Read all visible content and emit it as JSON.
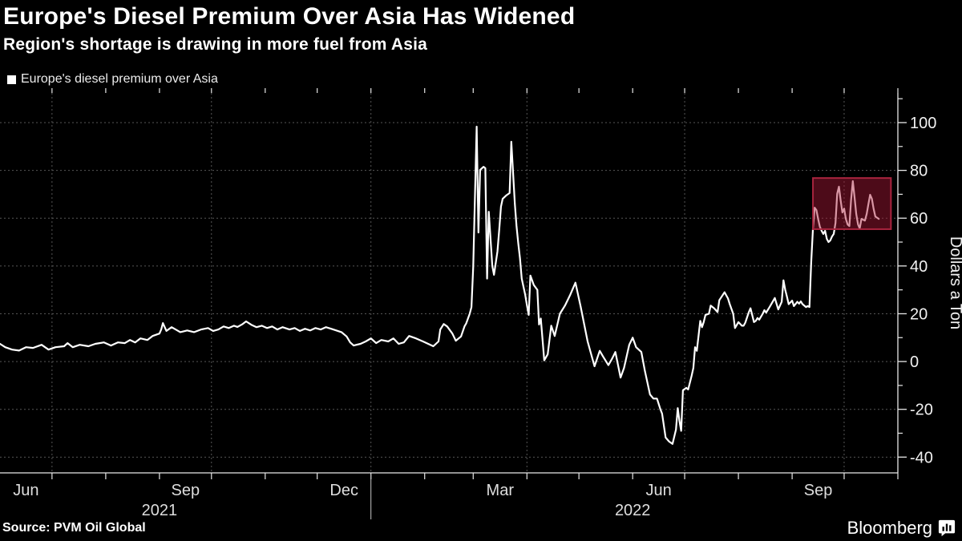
{
  "header": {
    "title": "Europe's Diesel Premium Over Asia Has Widened",
    "subtitle": "Region's shortage is drawing in more fuel from Asia"
  },
  "legend": {
    "label": "Europe's diesel premium over Asia",
    "marker_color": "#ffffff"
  },
  "source": {
    "label": "Source: PVM Oil Global"
  },
  "branding": {
    "label": "Bloomberg",
    "icon": "bloomberg-terminal-icon"
  },
  "colors": {
    "background": "#000000",
    "line": "#ffffff",
    "grid": "#565656",
    "axis": "#e8e8e8",
    "tick_text": "#f0f0f0",
    "month_text": "#dedede",
    "highlight_fill": "rgba(170,25,55,0.45)",
    "highlight_stroke": "#a8243e",
    "year_separator": "#c8c8c8"
  },
  "chart_data": {
    "type": "line",
    "title": "Europe's Diesel Premium Over Asia Has Widened",
    "subtitle": "Region's shortage is drawing in more fuel from Asia",
    "xlabel": "",
    "ylabel": "Dollars a Ton",
    "grid": true,
    "legend_position": "top-left",
    "x_domain": [
      "2021-06-01",
      "2022-11-01"
    ],
    "ylim": [
      -46.6,
      112.4
    ],
    "y_ticks": [
      100,
      80,
      60,
      40,
      20,
      0,
      -20,
      -40
    ],
    "y_minor_ticks": [
      110,
      90,
      70,
      50,
      30,
      10,
      -10,
      -30
    ],
    "x_gridlines": [
      "2021-07-01",
      "2021-10-01",
      "2022-01-01",
      "2022-04-01",
      "2022-07-01",
      "2022-10-01"
    ],
    "x_month_labels": [
      {
        "month": "2021-06-01",
        "label": "Jun"
      },
      {
        "month": "2021-09-01",
        "label": "Sep"
      },
      {
        "month": "2021-12-01",
        "label": "Dec"
      },
      {
        "month": "2022-03-01",
        "label": "Mar"
      },
      {
        "month": "2022-06-01",
        "label": "Jun"
      },
      {
        "month": "2022-09-01",
        "label": "Sep"
      }
    ],
    "x_year_labels": [
      {
        "at": "2021-09-01",
        "label": "2021"
      },
      {
        "at": "2022-06-01",
        "label": "2022"
      }
    ],
    "year_separators": [
      "2022-01-01"
    ],
    "highlight_box": {
      "x_start": "2022-09-13",
      "x_end": "2022-10-28",
      "y_min": 55.4,
      "y_max": 76.8
    },
    "series": [
      {
        "name": "Europe's diesel premium over Asia",
        "color": "#ffffff",
        "points": [
          [
            "2021-06-01",
            7.4
          ],
          [
            "2021-06-04",
            6.0
          ],
          [
            "2021-06-08",
            5.0
          ],
          [
            "2021-06-12",
            4.6
          ],
          [
            "2021-06-16",
            6.0
          ],
          [
            "2021-06-20",
            5.7
          ],
          [
            "2021-06-25",
            7.0
          ],
          [
            "2021-06-29",
            5.0
          ],
          [
            "2021-07-03",
            6.0
          ],
          [
            "2021-07-08",
            6.4
          ],
          [
            "2021-07-10",
            7.7
          ],
          [
            "2021-07-13",
            6.0
          ],
          [
            "2021-07-17",
            7.0
          ],
          [
            "2021-07-22",
            6.4
          ],
          [
            "2021-07-26",
            7.4
          ],
          [
            "2021-07-31",
            8.0
          ],
          [
            "2021-08-04",
            6.7
          ],
          [
            "2021-08-08",
            8.0
          ],
          [
            "2021-08-12",
            7.7
          ],
          [
            "2021-08-15",
            9.0
          ],
          [
            "2021-08-18",
            8.0
          ],
          [
            "2021-08-21",
            9.7
          ],
          [
            "2021-08-25",
            9.0
          ],
          [
            "2021-08-28",
            10.7
          ],
          [
            "2021-09-01",
            11.7
          ],
          [
            "2021-09-02",
            13.4
          ],
          [
            "2021-09-03",
            16.1
          ],
          [
            "2021-09-05",
            12.8
          ],
          [
            "2021-09-08",
            14.4
          ],
          [
            "2021-09-13",
            12.3
          ],
          [
            "2021-09-17",
            13.0
          ],
          [
            "2021-09-21",
            12.3
          ],
          [
            "2021-09-25",
            13.4
          ],
          [
            "2021-09-29",
            14.0
          ],
          [
            "2021-10-02",
            12.8
          ],
          [
            "2021-10-05",
            13.4
          ],
          [
            "2021-10-08",
            14.7
          ],
          [
            "2021-10-11",
            14.0
          ],
          [
            "2021-10-14",
            15.0
          ],
          [
            "2021-10-16",
            14.5
          ],
          [
            "2021-10-19",
            15.7
          ],
          [
            "2021-10-21",
            16.8
          ],
          [
            "2021-10-24",
            15.4
          ],
          [
            "2021-10-27",
            14.4
          ],
          [
            "2021-10-30",
            15.0
          ],
          [
            "2021-11-02",
            14.0
          ],
          [
            "2021-11-05",
            14.7
          ],
          [
            "2021-11-08",
            13.4
          ],
          [
            "2021-11-11",
            14.4
          ],
          [
            "2021-11-15",
            13.4
          ],
          [
            "2021-11-18",
            14.0
          ],
          [
            "2021-11-21",
            12.8
          ],
          [
            "2021-11-24",
            13.7
          ],
          [
            "2021-11-27",
            13.0
          ],
          [
            "2021-11-30",
            14.0
          ],
          [
            "2021-12-03",
            13.4
          ],
          [
            "2021-12-06",
            14.4
          ],
          [
            "2021-12-09",
            13.7
          ],
          [
            "2021-12-12",
            13.0
          ],
          [
            "2021-12-15",
            12.3
          ],
          [
            "2021-12-18",
            10.5
          ],
          [
            "2021-12-20",
            8.0
          ],
          [
            "2021-12-22",
            6.7
          ],
          [
            "2021-12-26",
            7.4
          ],
          [
            "2021-12-29",
            8.4
          ],
          [
            "2022-01-01",
            9.7
          ],
          [
            "2022-01-04",
            7.7
          ],
          [
            "2022-01-07",
            9.0
          ],
          [
            "2022-01-11",
            8.4
          ],
          [
            "2022-01-14",
            9.7
          ],
          [
            "2022-01-17",
            7.4
          ],
          [
            "2022-01-20",
            8.0
          ],
          [
            "2022-01-23",
            10.7
          ],
          [
            "2022-01-27",
            9.7
          ],
          [
            "2022-01-31",
            8.4
          ],
          [
            "2022-02-03",
            7.4
          ],
          [
            "2022-02-06",
            6.4
          ],
          [
            "2022-02-09",
            8.4
          ],
          [
            "2022-02-10",
            13.4
          ],
          [
            "2022-02-12",
            15.7
          ],
          [
            "2022-02-14",
            14.7
          ],
          [
            "2022-02-17",
            11.7
          ],
          [
            "2022-02-19",
            8.7
          ],
          [
            "2022-02-22",
            10.5
          ],
          [
            "2022-02-24",
            14.8
          ],
          [
            "2022-02-25",
            16.0
          ],
          [
            "2022-02-27",
            20.0
          ],
          [
            "2022-02-28",
            22.8
          ],
          [
            "2022-03-01",
            39.6
          ],
          [
            "2022-03-03",
            98.3
          ],
          [
            "2022-03-04",
            54.0
          ],
          [
            "2022-03-05",
            80.2
          ],
          [
            "2022-03-07",
            81.5
          ],
          [
            "2022-03-08",
            80.9
          ],
          [
            "2022-03-09",
            34.7
          ],
          [
            "2022-03-10",
            62.7
          ],
          [
            "2022-03-12",
            40.0
          ],
          [
            "2022-03-13",
            36.3
          ],
          [
            "2022-03-15",
            46.0
          ],
          [
            "2022-03-16",
            55.0
          ],
          [
            "2022-03-17",
            64.8
          ],
          [
            "2022-03-18",
            68.1
          ],
          [
            "2022-03-20",
            69.5
          ],
          [
            "2022-03-22",
            70.5
          ],
          [
            "2022-03-23",
            92.0
          ],
          [
            "2022-03-25",
            66.1
          ],
          [
            "2022-03-26",
            56.7
          ],
          [
            "2022-03-27",
            49.4
          ],
          [
            "2022-03-28",
            43.3
          ],
          [
            "2022-03-29",
            34.7
          ],
          [
            "2022-03-31",
            28.0
          ],
          [
            "2022-04-01",
            23.5
          ],
          [
            "2022-04-02",
            19.5
          ],
          [
            "2022-04-03",
            36.0
          ],
          [
            "2022-04-05",
            32.0
          ],
          [
            "2022-04-07",
            30.0
          ],
          [
            "2022-04-08",
            15.5
          ],
          [
            "2022-04-09",
            18.0
          ],
          [
            "2022-04-11",
            0.5
          ],
          [
            "2022-04-13",
            3.0
          ],
          [
            "2022-04-15",
            15.0
          ],
          [
            "2022-04-17",
            10.7
          ],
          [
            "2022-04-20",
            20.0
          ],
          [
            "2022-04-23",
            23.5
          ],
          [
            "2022-04-26",
            28.0
          ],
          [
            "2022-04-29",
            33.0
          ],
          [
            "2022-05-02",
            23.0
          ],
          [
            "2022-05-06",
            8.4
          ],
          [
            "2022-05-10",
            -2.0
          ],
          [
            "2022-05-13",
            4.5
          ],
          [
            "2022-05-15",
            2.0
          ],
          [
            "2022-05-18",
            -1.5
          ],
          [
            "2022-05-20",
            1.0
          ],
          [
            "2022-05-22",
            4.0
          ],
          [
            "2022-05-25",
            -6.7
          ],
          [
            "2022-05-27",
            -2.7
          ],
          [
            "2022-05-30",
            7.0
          ],
          [
            "2022-06-01",
            10.0
          ],
          [
            "2022-06-03",
            6.0
          ],
          [
            "2022-06-06",
            4.0
          ],
          [
            "2022-06-08",
            -3.7
          ],
          [
            "2022-06-11",
            -13.8
          ],
          [
            "2022-06-13",
            -15.5
          ],
          [
            "2022-06-15",
            -15.5
          ],
          [
            "2022-06-17",
            -20.0
          ],
          [
            "2022-06-18",
            -21.8
          ],
          [
            "2022-06-20",
            -31.8
          ],
          [
            "2022-06-22",
            -33.5
          ],
          [
            "2022-06-24",
            -34.5
          ],
          [
            "2022-06-26",
            -28.5
          ],
          [
            "2022-06-27",
            -19.5
          ],
          [
            "2022-06-28",
            -25.0
          ],
          [
            "2022-06-29",
            -29.0
          ],
          [
            "2022-06-30",
            -12.0
          ],
          [
            "2022-07-02",
            -11.0
          ],
          [
            "2022-07-03",
            -11.7
          ],
          [
            "2022-07-05",
            -6.0
          ],
          [
            "2022-07-06",
            -2.7
          ],
          [
            "2022-07-07",
            6.0
          ],
          [
            "2022-07-08",
            4.5
          ],
          [
            "2022-07-10",
            17.0
          ],
          [
            "2022-07-11",
            14.4
          ],
          [
            "2022-07-12",
            16.5
          ],
          [
            "2022-07-13",
            19.5
          ],
          [
            "2022-07-15",
            20.0
          ],
          [
            "2022-07-16",
            23.4
          ],
          [
            "2022-07-18",
            22.3
          ],
          [
            "2022-07-20",
            20.7
          ],
          [
            "2022-07-21",
            25.7
          ],
          [
            "2022-07-22",
            26.8
          ],
          [
            "2022-07-24",
            29.0
          ],
          [
            "2022-07-26",
            26.4
          ],
          [
            "2022-07-27",
            24.0
          ],
          [
            "2022-07-29",
            20.0
          ],
          [
            "2022-07-30",
            14.0
          ],
          [
            "2022-08-01",
            16.5
          ],
          [
            "2022-08-03",
            15.0
          ],
          [
            "2022-08-04",
            15.0
          ],
          [
            "2022-08-05",
            16.3
          ],
          [
            "2022-08-07",
            20.7
          ],
          [
            "2022-08-08",
            22.3
          ],
          [
            "2022-08-10",
            16.5
          ],
          [
            "2022-08-11",
            17.0
          ],
          [
            "2022-08-12",
            18.2
          ],
          [
            "2022-08-13",
            17.5
          ],
          [
            "2022-08-15",
            20.0
          ],
          [
            "2022-08-16",
            21.5
          ],
          [
            "2022-08-17",
            20.5
          ],
          [
            "2022-08-19",
            22.8
          ],
          [
            "2022-08-22",
            26.6
          ],
          [
            "2022-08-24",
            21.8
          ],
          [
            "2022-08-26",
            25.0
          ],
          [
            "2022-08-27",
            34.0
          ],
          [
            "2022-08-28",
            30.0
          ],
          [
            "2022-08-29",
            27.2
          ],
          [
            "2022-08-30",
            24.0
          ],
          [
            "2022-09-01",
            25.5
          ],
          [
            "2022-09-02",
            23.2
          ],
          [
            "2022-09-04",
            25.0
          ],
          [
            "2022-09-05",
            24.2
          ],
          [
            "2022-09-06",
            25.2
          ],
          [
            "2022-09-07",
            24.0
          ],
          [
            "2022-09-09",
            22.8
          ],
          [
            "2022-09-10",
            23.2
          ],
          [
            "2022-09-11",
            22.8
          ],
          [
            "2022-09-12",
            41.6
          ],
          [
            "2022-09-13",
            55.7
          ],
          [
            "2022-09-14",
            64.4
          ],
          [
            "2022-09-15",
            63.4
          ],
          [
            "2022-09-16",
            59.7
          ],
          [
            "2022-09-17",
            56.4
          ],
          [
            "2022-09-18",
            54.7
          ],
          [
            "2022-09-19",
            53.4
          ],
          [
            "2022-09-20",
            54.7
          ],
          [
            "2022-09-21",
            51.3
          ],
          [
            "2022-09-22",
            50.0
          ],
          [
            "2022-09-23",
            50.7
          ],
          [
            "2022-09-24",
            52.3
          ],
          [
            "2022-09-25",
            53.4
          ],
          [
            "2022-09-26",
            58.0
          ],
          [
            "2022-09-27",
            70.2
          ],
          [
            "2022-09-28",
            73.2
          ],
          [
            "2022-09-29",
            67.5
          ],
          [
            "2022-09-30",
            62.4
          ],
          [
            "2022-10-01",
            64.0
          ],
          [
            "2022-10-02",
            59.7
          ],
          [
            "2022-10-03",
            57.4
          ],
          [
            "2022-10-04",
            56.7
          ],
          [
            "2022-10-05",
            67.5
          ],
          [
            "2022-10-06",
            75.5
          ],
          [
            "2022-10-07",
            69.0
          ],
          [
            "2022-10-08",
            61.7
          ],
          [
            "2022-10-09",
            57.4
          ],
          [
            "2022-10-10",
            55.7
          ],
          [
            "2022-10-11",
            59.7
          ],
          [
            "2022-10-13",
            59.0
          ],
          [
            "2022-10-14",
            61.7
          ],
          [
            "2022-10-15",
            65.8
          ],
          [
            "2022-10-16",
            69.8
          ],
          [
            "2022-10-17",
            68.1
          ],
          [
            "2022-10-18",
            64.0
          ],
          [
            "2022-10-19",
            60.7
          ],
          [
            "2022-10-21",
            59.7
          ]
        ]
      }
    ]
  }
}
